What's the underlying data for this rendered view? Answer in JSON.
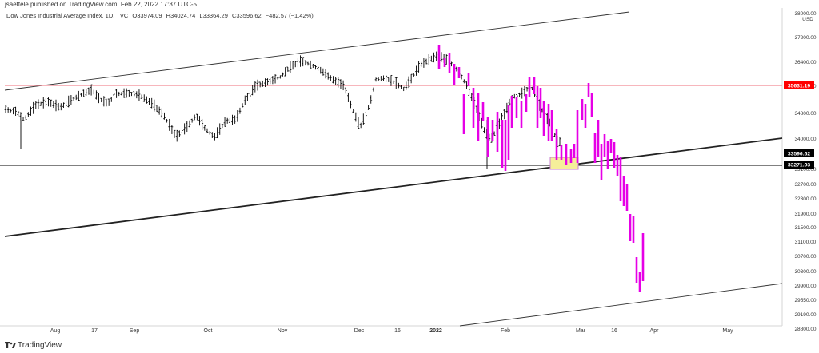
{
  "header": {
    "publisher_line": "jsaettele published on TradingView.com, Feb 22, 2022 17:37 UTC-5"
  },
  "legend": {
    "instrument": "Dow Jones Industrial Average Index, 1D, TVC",
    "open": "O33974.09",
    "high": "H34024.74",
    "low": "L33364.29",
    "close": "C33596.62",
    "change": "−482.57 (−1.42%)"
  },
  "footer": {
    "brand": "TradingView"
  },
  "chart_data": {
    "type": "ohlc",
    "title": "Dow Jones Industrial Average Index, 1D, TVC",
    "currency": "USD",
    "x_labels": [
      "Aug",
      "17",
      "Sep",
      "Oct",
      "Nov",
      "Dec",
      "16",
      "2022",
      "Feb",
      "Mar",
      "16",
      "Apr",
      "May"
    ],
    "y_ticks": [
      "38000.00",
      "37200.00",
      "36400.00",
      "35600.00",
      "34800.00",
      "34000.00",
      "33100.00",
      "32700.00",
      "32300.00",
      "31900.00",
      "31500.00",
      "31100.00",
      "30700.00",
      "30300.00",
      "29900.00",
      "29550.00",
      "29190.00",
      "28800.00"
    ],
    "price_labels": [
      {
        "value": "35631.19",
        "color": "#ff0000"
      },
      {
        "value": "33596.62",
        "color": "#000000"
      },
      {
        "value": "33271.93",
        "color": "#000000"
      }
    ],
    "horizontal_lines": [
      {
        "name": "resistance",
        "value": 35631.19,
        "color": "#f28b95"
      },
      {
        "name": "support",
        "value": 33271.93,
        "color": "#000000"
      }
    ],
    "bar_color": "#000000",
    "projection_color": "#e600e6",
    "highlight_color": "#f5ef9a",
    "grid": false
  }
}
